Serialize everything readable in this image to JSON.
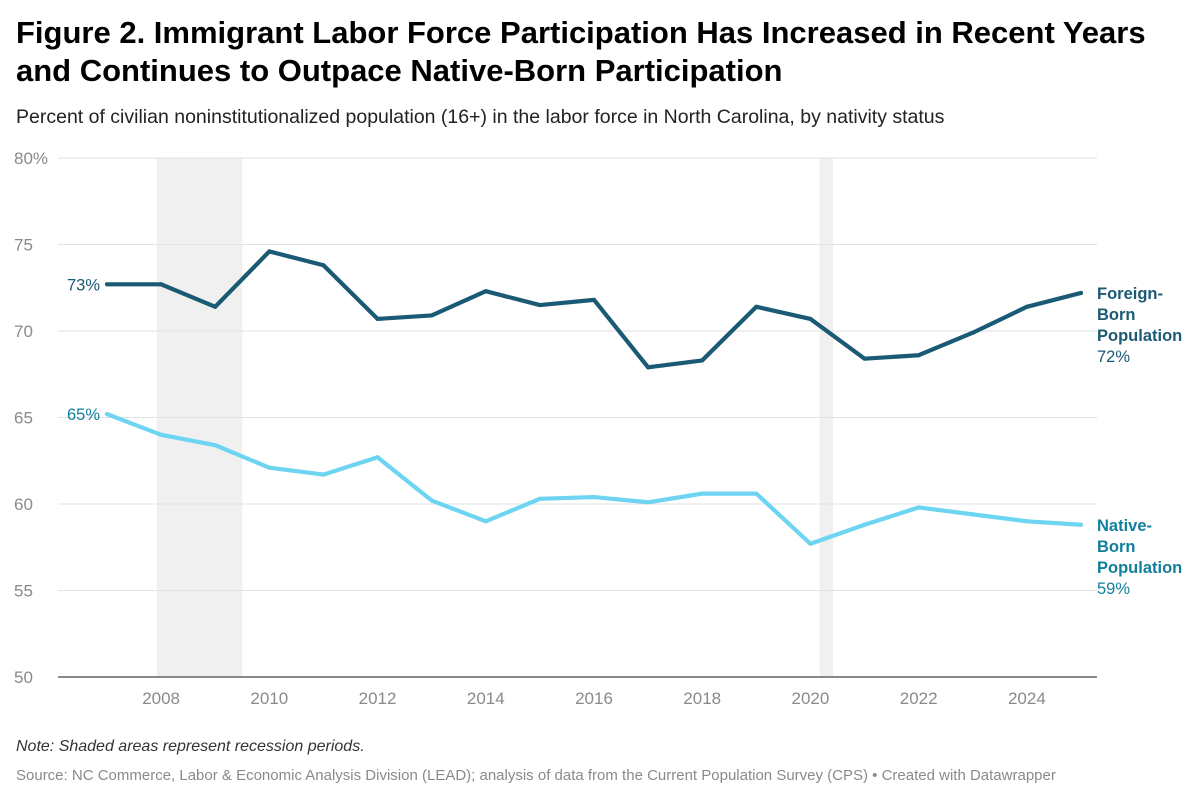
{
  "title": "Figure 2. Immigrant Labor Force Participation Has Increased in Recent Years and Continues to Outpace Native-Born Participation",
  "subtitle": "Percent of civilian noninstitutionalized population (16+) in the labor force in North Carolina, by nativity status",
  "note": "Note: Shaded areas represent recession periods.",
  "source": "Source: NC Commerce, Labor & Economic Analysis Division (LEAD); analysis of data from the Current Population Survey (CPS) • Created with Datawrapper",
  "chart_data": {
    "type": "line",
    "xlim": [
      2007,
      2025
    ],
    "ylim": [
      50,
      80
    ],
    "grid": true,
    "x_ticks": [
      "2008",
      "2010",
      "2012",
      "2014",
      "2016",
      "2018",
      "2020",
      "2022",
      "2024"
    ],
    "y_ticks": [
      "80%",
      "75",
      "70",
      "65",
      "60",
      "55",
      "50"
    ],
    "recessions": [
      [
        2007.92,
        2009.5
      ],
      [
        2020.17,
        2020.42
      ]
    ],
    "x": [
      2007,
      2008,
      2009,
      2010,
      2011,
      2012,
      2013,
      2014,
      2015,
      2016,
      2017,
      2018,
      2019,
      2020,
      2021,
      2022,
      2023,
      2024,
      2025
    ],
    "series": [
      {
        "name_lines": [
          "Foreign-",
          "Born",
          "Population"
        ],
        "end_label": "72%",
        "start_label": "73%",
        "color": "#1a5a74",
        "label_color": "#1a5a74",
        "values": [
          72.7,
          72.7,
          71.4,
          74.6,
          73.8,
          70.7,
          70.9,
          72.3,
          71.5,
          71.8,
          67.9,
          68.3,
          71.4,
          70.7,
          68.4,
          68.6,
          69.9,
          71.4,
          72.2
        ]
      },
      {
        "name_lines": [
          "Native-",
          "Born",
          "Population"
        ],
        "end_label": "59%",
        "start_label": "65%",
        "color": "#6dd4f2",
        "label_color": "#117f9c",
        "values": [
          65.2,
          64.0,
          63.4,
          62.1,
          61.7,
          62.7,
          60.2,
          59.0,
          60.3,
          60.4,
          60.1,
          60.6,
          60.6,
          57.7,
          58.8,
          59.8,
          59.4,
          59.0,
          58.8
        ]
      }
    ]
  }
}
